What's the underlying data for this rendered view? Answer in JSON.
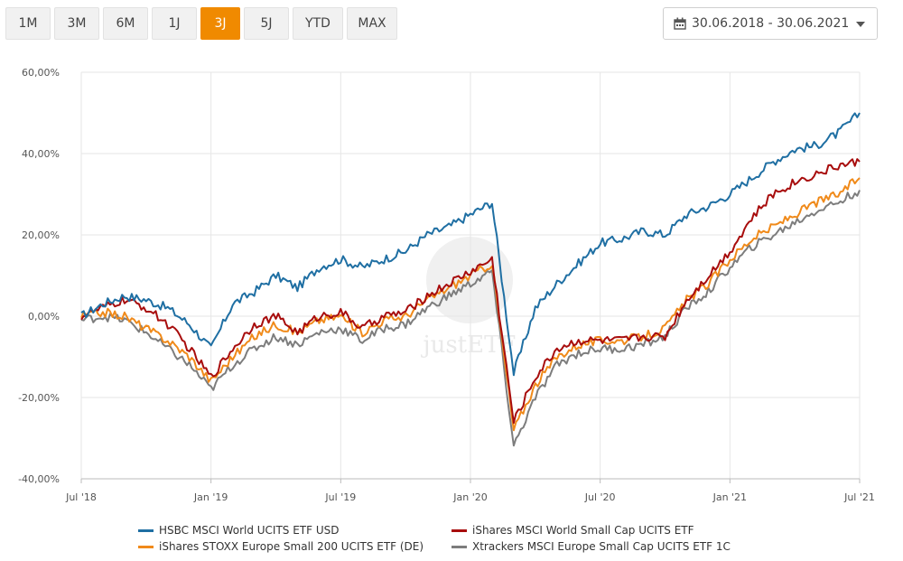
{
  "toolbar": {
    "tabs": [
      "1M",
      "3M",
      "6M",
      "1J",
      "3J",
      "5J",
      "YTD",
      "MAX"
    ],
    "active_tab": "3J",
    "date_range": "30.06.2018 - 30.06.2021"
  },
  "colors": {
    "accent": "#f08a00",
    "hsbc": "#1f6fa3",
    "ishares_world_small": "#a80d0d",
    "ishares_stoxx": "#f08a1a",
    "xtrackers": "#7d7d7d"
  },
  "watermark": "justETF",
  "chart_data": {
    "type": "line",
    "title": "",
    "xlabel": "",
    "ylabel": "",
    "x": [
      "Jul '18",
      "Aug '18",
      "Sep '18",
      "Oct '18",
      "Nov '18",
      "Dec '18",
      "Jan '19",
      "Feb '19",
      "Mar '19",
      "Apr '19",
      "May '19",
      "Jun '19",
      "Jul '19",
      "Aug '19",
      "Sep '19",
      "Oct '19",
      "Nov '19",
      "Dec '19",
      "Jan '20",
      "Feb '20",
      "Mar '20",
      "Apr '20",
      "May '20",
      "Jun '20",
      "Jul '20",
      "Aug '20",
      "Sep '20",
      "Oct '20",
      "Nov '20",
      "Dec '20",
      "Jan '21",
      "Feb '21",
      "Mar '21",
      "Apr '21",
      "May '21",
      "Jun '21",
      "Jul '21"
    ],
    "x_ticks": [
      "Jul '18",
      "Jan '19",
      "Jul '19",
      "Jan '20",
      "Jul '20",
      "Jan '21",
      "Jul '21"
    ],
    "y_ticks": [
      "-40,00%",
      "-20,00%",
      "0,00%",
      "20,00%",
      "40,00%",
      "60,00%"
    ],
    "ylim": [
      -40,
      60
    ],
    "series": [
      {
        "name": "HSBC MSCI World UCITS ETF USD",
        "color_key": "hsbc",
        "values": [
          0,
          3,
          5,
          4,
          2,
          -2,
          -8,
          3,
          6,
          10,
          7,
          12,
          14,
          12,
          14,
          16,
          20,
          22,
          25,
          28,
          -14,
          2,
          8,
          13,
          18,
          19,
          21,
          20,
          25,
          27,
          30,
          34,
          38,
          41,
          42,
          45,
          50
        ]
      },
      {
        "name": "iShares MSCI World Small Cap UCITS ETF",
        "color_key": "ishares_world_small",
        "values": [
          0,
          2,
          4,
          2,
          -2,
          -8,
          -15,
          -8,
          -2,
          0,
          -4,
          0,
          1,
          -3,
          0,
          1,
          5,
          8,
          11,
          14,
          -26,
          -15,
          -8,
          -6,
          -6,
          -6,
          -5,
          -5,
          4,
          10,
          16,
          24,
          30,
          33,
          35,
          37,
          38
        ]
      },
      {
        "name": "iShares STOXX Europe Small 200 UCITS ETF (DE)",
        "color_key": "ishares_stoxx",
        "values": [
          0,
          1,
          0,
          -3,
          -6,
          -10,
          -16,
          -10,
          -5,
          -2,
          -4,
          -1,
          0,
          -4,
          -1,
          0,
          4,
          7,
          10,
          13,
          -28,
          -17,
          -10,
          -7,
          -6,
          -6,
          -5,
          -3,
          4,
          8,
          14,
          19,
          22,
          25,
          28,
          30,
          34
        ]
      },
      {
        "name": "Xtrackers MSCI Europe Small Cap UCITS ETF 1C",
        "color_key": "xtrackers",
        "values": [
          -1,
          0,
          -1,
          -4,
          -8,
          -12,
          -18,
          -12,
          -8,
          -5,
          -7,
          -4,
          -3,
          -6,
          -3,
          -2,
          2,
          5,
          8,
          11,
          -32,
          -20,
          -12,
          -9,
          -8,
          -8,
          -7,
          -5,
          2,
          6,
          12,
          17,
          20,
          23,
          26,
          28,
          31
        ]
      }
    ],
    "legend_position": "bottom",
    "grid": true
  },
  "legend": [
    {
      "label": "HSBC MSCI World UCITS ETF USD",
      "color_key": "hsbc"
    },
    {
      "label": "iShares MSCI World Small Cap UCITS ETF",
      "color_key": "ishares_world_small"
    },
    {
      "label": "iShares STOXX Europe Small 200 UCITS ETF (DE)",
      "color_key": "ishares_stoxx"
    },
    {
      "label": "Xtrackers MSCI Europe Small Cap UCITS ETF 1C",
      "color_key": "xtrackers"
    }
  ]
}
